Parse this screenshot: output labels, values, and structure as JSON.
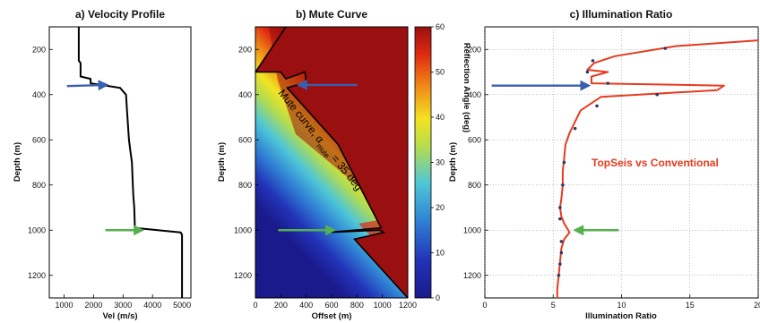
{
  "chart_data": [
    {
      "type": "line",
      "title": "a)  Velocity Profile",
      "xlabel": "Vel (m/s)",
      "ylabel": "Depth (m)",
      "xlim": [
        500,
        5300
      ],
      "ylim": [
        1300,
        100
      ],
      "y_reversed": true,
      "xticks": [
        "1000",
        "2000",
        "3000",
        "4000",
        "5000"
      ],
      "yticks": [
        "200",
        "400",
        "600",
        "800",
        "1000",
        "1200"
      ],
      "series": [
        {
          "color": "#000000",
          "x": [
            1500,
            1500,
            1560,
            1560,
            1900,
            1900,
            2900,
            3100,
            3150,
            3200,
            3250,
            3300,
            3330,
            3350,
            3380,
            3400,
            4950,
            5000,
            5000
          ],
          "y": [
            100,
            250,
            260,
            320,
            330,
            350,
            370,
            400,
            500,
            600,
            650,
            700,
            800,
            850,
            900,
            990,
            1010,
            1020,
            1300
          ]
        }
      ],
      "annotations": [
        {
          "type": "arrow",
          "color": "#3a5fb0",
          "from": [
            1100,
            362
          ],
          "to": [
            2450,
            357
          ]
        },
        {
          "type": "arrow",
          "color": "#55b04d",
          "from": [
            2400,
            1000
          ],
          "to": [
            3650,
            1000
          ]
        }
      ]
    },
    {
      "type": "heatmap",
      "title": "b)  Mute Curve",
      "xlabel": "Offset (m)",
      "ylabel": "Depth (m)",
      "xlim": [
        0,
        1200
      ],
      "ylim": [
        1300,
        100
      ],
      "y_reversed": true,
      "xticks": [
        "0",
        "200",
        "400",
        "600",
        "800",
        "1000",
        "1200"
      ],
      "yticks": [
        "200",
        "400",
        "600",
        "800",
        "1000",
        "1200"
      ],
      "colorbar": {
        "label": "Reflection Angle (deg)",
        "range": [
          0,
          60
        ],
        "ticks": [
          "0",
          "10",
          "20",
          "30",
          "40",
          "50",
          "60"
        ]
      },
      "mute_curve": {
        "x": [
          240,
          0,
          200,
          240,
          390,
          400,
          250,
          650,
          990,
          560,
          980,
          1010,
          780,
          1200
        ],
        "y": [
          100,
          300,
          300,
          330,
          300,
          345,
          370,
          620,
          990,
          1010,
          1000,
          1010,
          1040,
          1300
        ]
      },
      "annotation_text": {
        "line1": "Mute curve, α",
        "sub": "mute",
        "line2": " = 35 deg"
      },
      "annotations": [
        {
          "type": "arrow",
          "color": "#3a5fb0",
          "from": [
            800,
            357
          ],
          "to": [
            340,
            357
          ]
        },
        {
          "type": "arrow",
          "color": "#55b04d",
          "from": [
            180,
            1000
          ],
          "to": [
            620,
            1000
          ]
        }
      ]
    },
    {
      "type": "line",
      "title": "c)  Illumination Ratio",
      "xlabel": "Illumination Ratio",
      "ylabel": "Depth (m)",
      "xlim": [
        0,
        20
      ],
      "ylim": [
        1300,
        100
      ],
      "y_reversed": true,
      "xticks": [
        "0",
        "5",
        "10",
        "15",
        "20"
      ],
      "yticks": [
        "200",
        "400",
        "600",
        "800",
        "1000",
        "1200"
      ],
      "legend_text": "TopSeis vs Conventional",
      "series": [
        {
          "name": "TopSeis vs Conventional",
          "color": "#e63b1f",
          "x": [
            20,
            14,
            9.5,
            8.0,
            7.5,
            9.0,
            7.8,
            7.8,
            17.5,
            17.0,
            8.5,
            8.0,
            7.0,
            6.6,
            6.2,
            5.9,
            5.8,
            5.7,
            5.7,
            5.6,
            5.5,
            5.6,
            5.8,
            6.0,
            6.2,
            5.8,
            5.6,
            5.5,
            5.4,
            5.3,
            5.3
          ],
          "y": [
            160,
            185,
            230,
            260,
            290,
            300,
            320,
            350,
            360,
            380,
            410,
            430,
            470,
            520,
            570,
            620,
            680,
            740,
            800,
            860,
            900,
            940,
            970,
            990,
            1010,
            1040,
            1080,
            1140,
            1200,
            1260,
            1300
          ]
        }
      ],
      "markers": {
        "color": "#2a3a6a",
        "x": [
          13.2,
          7.9,
          7.5,
          9.0,
          12.6,
          8.2,
          6.6,
          5.8,
          5.7,
          5.5,
          5.5,
          5.6,
          5.6,
          5.5,
          5.4
        ],
        "y": [
          195,
          250,
          300,
          350,
          400,
          450,
          550,
          700,
          800,
          900,
          950,
          1050,
          1100,
          1150,
          1200
        ]
      },
      "annotations": [
        {
          "type": "arrow",
          "color": "#3a5fb0",
          "from": [
            0.5,
            360
          ],
          "to": [
            7.6,
            360
          ]
        },
        {
          "type": "arrow",
          "color": "#55b04d",
          "from": [
            9.8,
            1000
          ],
          "to": [
            6.6,
            1000
          ]
        }
      ]
    }
  ]
}
